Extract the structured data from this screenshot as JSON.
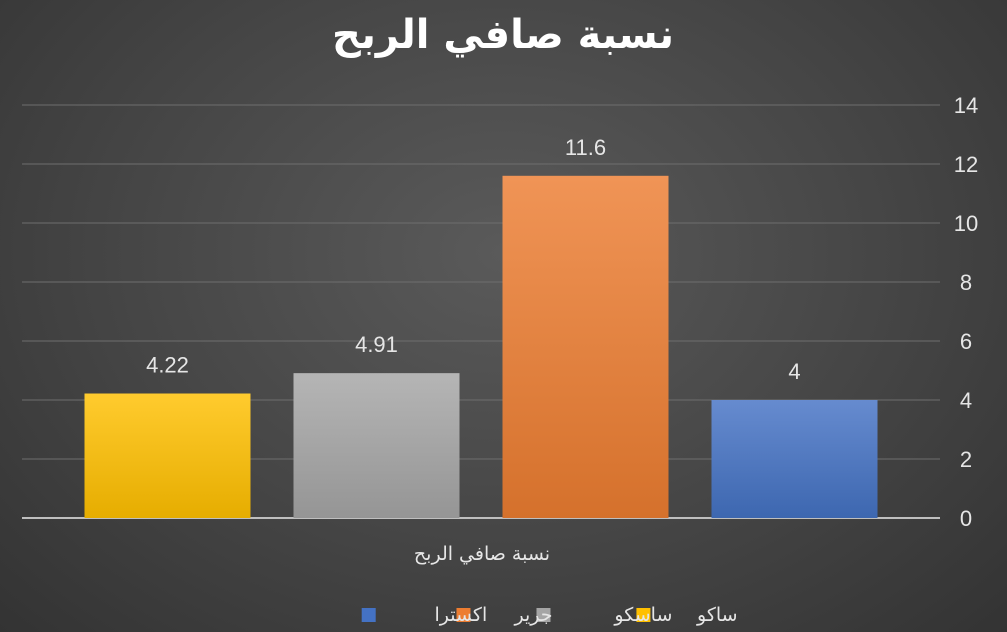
{
  "chart_data": {
    "type": "bar",
    "title": "نسبة صافي الربح",
    "categories": [
      "نسبة صافي الربح"
    ],
    "series": [
      {
        "name": "ساكو",
        "values": [
          4.22
        ],
        "color": "#ffc000"
      },
      {
        "name": "ساسكو",
        "values": [
          4.91
        ],
        "color": "#a5a5a5"
      },
      {
        "name": "جرير",
        "values": [
          11.6
        ],
        "color": "#ed7d31"
      },
      {
        "name": "اكسترا",
        "values": [
          4
        ],
        "color": "#4472c4"
      }
    ],
    "data_labels": [
      "4.22",
      "4.91",
      "11.6",
      "4"
    ],
    "ylim": [
      0,
      14
    ],
    "yticks": [
      0,
      2,
      4,
      6,
      8,
      10,
      12,
      14
    ],
    "y_axis_side": "right",
    "grid": true,
    "legend_position": "bottom",
    "xlabel": "",
    "ylabel": ""
  }
}
